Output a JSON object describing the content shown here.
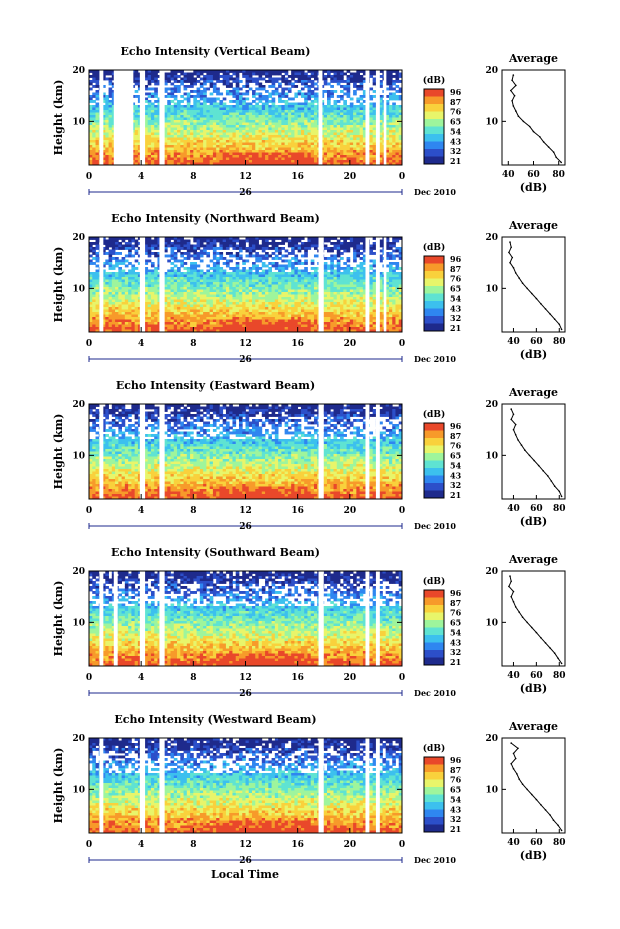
{
  "figure": {
    "bottom_xlabel": "Local Time",
    "date_label": "Dec 2010",
    "day_label": "26",
    "average_title": "Average",
    "colorbar_unit": "(dB)",
    "avg_xlabel": "(dB)",
    "colors": [
      "#1e2a8c",
      "#2c4fc9",
      "#2f86f0",
      "#3cc0ee",
      "#5fe3d2",
      "#9ef59c",
      "#e8f56a",
      "#f9d13c",
      "#f79a2a",
      "#e9482a"
    ],
    "gap_color": "#ffffff"
  },
  "chart_data": [
    {
      "type": "heatmap",
      "title": "Echo Intensity (Vertical Beam)",
      "ylabel": "Height (km)",
      "x_ticks": [
        "0",
        "4",
        "8",
        "12",
        "16",
        "20",
        "0"
      ],
      "xlim": [
        0,
        24
      ],
      "y_ticks": [
        "20",
        "10"
      ],
      "ylim": [
        1.5,
        20
      ],
      "colorbar_ticks": [
        "96",
        "87",
        "76",
        "65",
        "54",
        "43",
        "32",
        "21"
      ],
      "data_gaps_hours": [
        [
          0.8,
          1.1
        ],
        [
          1.9,
          3.4
        ],
        [
          3.9,
          4.3
        ],
        [
          5.4,
          5.8
        ],
        [
          17.6,
          17.9
        ],
        [
          21.2,
          21.5
        ],
        [
          22.0,
          22.3
        ],
        [
          22.6,
          22.8
        ]
      ],
      "average_profile": {
        "x_ticks": [
          "40",
          "60",
          "80"
        ],
        "xlim": [
          35,
          85
        ],
        "height_km": [
          2,
          3,
          4,
          5,
          6,
          7,
          8,
          9,
          10,
          11,
          12,
          13,
          14,
          15,
          16,
          17,
          18,
          19
        ],
        "db": [
          82,
          78,
          76,
          72,
          68,
          65,
          60,
          57,
          52,
          48,
          46,
          44,
          43,
          45,
          42,
          46,
          43,
          44
        ]
      }
    },
    {
      "type": "heatmap",
      "title": "Echo Intensity (Northward Beam)",
      "ylabel": "Height (km)",
      "x_ticks": [
        "0",
        "4",
        "8",
        "12",
        "16",
        "20",
        "0"
      ],
      "xlim": [
        0,
        24
      ],
      "y_ticks": [
        "20",
        "10"
      ],
      "ylim": [
        1.5,
        20
      ],
      "colorbar_ticks": [
        "96",
        "87",
        "76",
        "65",
        "54",
        "43",
        "32",
        "21"
      ],
      "data_gaps_hours": [
        [
          0.8,
          1.1
        ],
        [
          3.9,
          4.3
        ],
        [
          5.4,
          5.8
        ],
        [
          17.6,
          18.0
        ],
        [
          21.2,
          21.5
        ],
        [
          22.0,
          22.3
        ],
        [
          22.6,
          22.8
        ]
      ],
      "average_profile": {
        "x_ticks": [
          "40",
          "60",
          "80"
        ],
        "xlim": [
          30,
          85
        ],
        "height_km": [
          2,
          3,
          4,
          5,
          6,
          7,
          8,
          9,
          10,
          11,
          12,
          13,
          14,
          15,
          16,
          17,
          18,
          19
        ],
        "db": [
          82,
          80,
          76,
          72,
          68,
          64,
          60,
          56,
          52,
          48,
          45,
          42,
          40,
          37,
          39,
          36,
          38,
          37
        ]
      }
    },
    {
      "type": "heatmap",
      "title": "Echo Intensity (Eastward Beam)",
      "ylabel": "Height (km)",
      "x_ticks": [
        "0",
        "4",
        "8",
        "12",
        "16",
        "20",
        "0"
      ],
      "xlim": [
        0,
        24
      ],
      "y_ticks": [
        "20",
        "10"
      ],
      "ylim": [
        1.5,
        20
      ],
      "colorbar_ticks": [
        "96",
        "87",
        "76",
        "65",
        "54",
        "43",
        "32",
        "21"
      ],
      "data_gaps_hours": [
        [
          0.8,
          1.1
        ],
        [
          3.9,
          4.3
        ],
        [
          5.4,
          5.8
        ],
        [
          17.6,
          18.0
        ],
        [
          21.2,
          21.5
        ],
        [
          22.0,
          22.3
        ]
      ],
      "average_profile": {
        "x_ticks": [
          "40",
          "60",
          "80"
        ],
        "xlim": [
          30,
          85
        ],
        "height_km": [
          2,
          3,
          4,
          5,
          6,
          7,
          8,
          9,
          10,
          11,
          12,
          13,
          14,
          15,
          16,
          17,
          18,
          19
        ],
        "db": [
          82,
          80,
          76,
          73,
          70,
          66,
          62,
          58,
          54,
          50,
          47,
          44,
          42,
          40,
          42,
          38,
          40,
          38
        ]
      }
    },
    {
      "type": "heatmap",
      "title": "Echo Intensity (Southward Beam)",
      "ylabel": "Height (km)",
      "x_ticks": [
        "0",
        "4",
        "8",
        "12",
        "16",
        "20",
        "0"
      ],
      "xlim": [
        0,
        24
      ],
      "y_ticks": [
        "20",
        "10"
      ],
      "ylim": [
        1.5,
        20
      ],
      "colorbar_ticks": [
        "96",
        "87",
        "76",
        "65",
        "54",
        "43",
        "32",
        "21"
      ],
      "data_gaps_hours": [
        [
          0.8,
          1.1
        ],
        [
          1.9,
          2.2
        ],
        [
          3.9,
          4.3
        ],
        [
          5.4,
          5.8
        ],
        [
          17.6,
          18.0
        ],
        [
          21.2,
          21.5
        ],
        [
          22.0,
          22.3
        ]
      ],
      "average_profile": {
        "x_ticks": [
          "40",
          "60",
          "80"
        ],
        "xlim": [
          30,
          85
        ],
        "height_km": [
          2,
          3,
          4,
          5,
          6,
          7,
          8,
          9,
          10,
          11,
          12,
          13,
          14,
          15,
          16,
          17,
          18,
          19
        ],
        "db": [
          82,
          79,
          76,
          72,
          68,
          64,
          60,
          56,
          52,
          48,
          45,
          42,
          40,
          38,
          40,
          36,
          38,
          37
        ]
      }
    },
    {
      "type": "heatmap",
      "title": "Echo Intensity (Westward Beam)",
      "ylabel": "Height (km)",
      "x_ticks": [
        "0",
        "4",
        "8",
        "12",
        "16",
        "20",
        "0"
      ],
      "xlim": [
        0,
        24
      ],
      "y_ticks": [
        "20",
        "10"
      ],
      "ylim": [
        1.5,
        20
      ],
      "colorbar_ticks": [
        "96",
        "87",
        "76",
        "65",
        "54",
        "43",
        "32",
        "21"
      ],
      "data_gaps_hours": [
        [
          0.8,
          1.1
        ],
        [
          3.9,
          4.3
        ],
        [
          5.4,
          5.8
        ],
        [
          17.6,
          18.0
        ],
        [
          21.2,
          21.5
        ],
        [
          22.0,
          22.3
        ]
      ],
      "average_profile": {
        "x_ticks": [
          "40",
          "60",
          "80"
        ],
        "xlim": [
          30,
          85
        ],
        "height_km": [
          2,
          3,
          4,
          5,
          6,
          7,
          8,
          9,
          10,
          11,
          12,
          13,
          14,
          15,
          16,
          17,
          18,
          19
        ],
        "db": [
          82,
          79,
          75,
          72,
          68,
          64,
          60,
          56,
          52,
          48,
          45,
          43,
          40,
          38,
          42,
          40,
          44,
          38
        ]
      }
    }
  ]
}
